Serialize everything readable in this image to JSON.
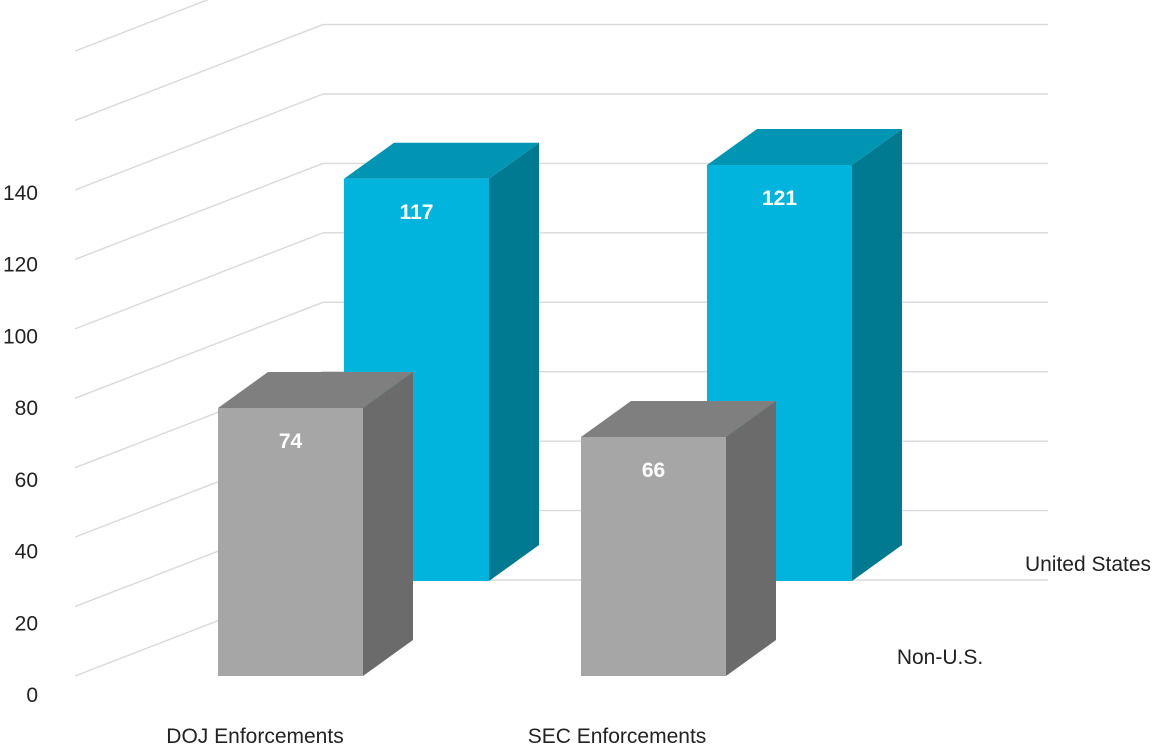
{
  "chart_data": {
    "type": "bar",
    "categories": [
      "DOJ Enforcements",
      "SEC Enforcements"
    ],
    "series": [
      {
        "name": "Non-U.S.",
        "values": [
          74,
          66
        ],
        "color": "#a6a6a6"
      },
      {
        "name": "United States",
        "values": [
          117,
          121
        ],
        "color": "#00b4de"
      }
    ],
    "y_ticks": [
      "0",
      "20",
      "40",
      "60",
      "80",
      "100",
      "120",
      "140"
    ],
    "ylim": [
      0,
      140
    ],
    "grid": true,
    "projection": "3d-column"
  }
}
